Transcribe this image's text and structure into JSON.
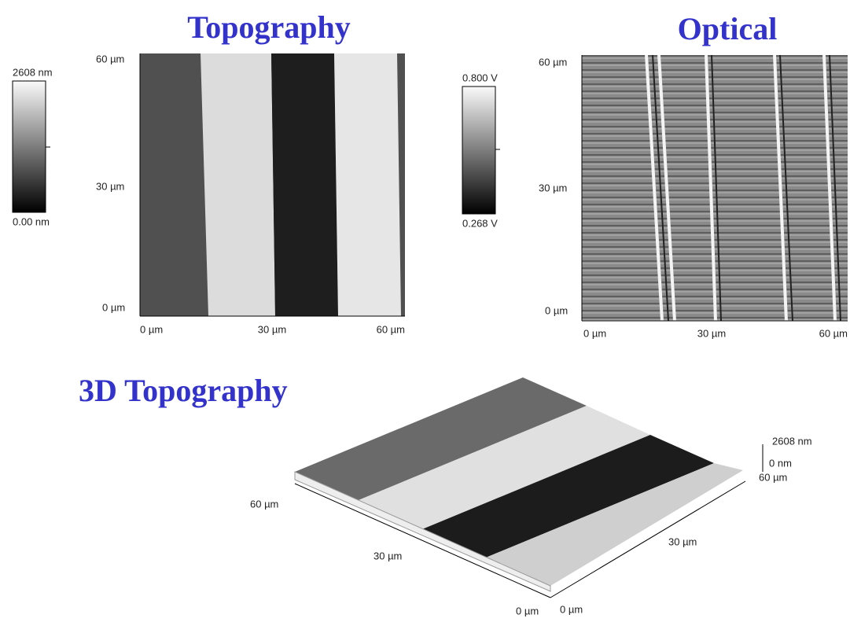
{
  "topography": {
    "title": "Topography",
    "colorbar": {
      "max": "2608 nm",
      "min": "0.00 nm"
    },
    "y_labels": [
      "60 µm",
      "30 µm",
      "0 µm"
    ],
    "x_labels": [
      "0 µm",
      "30 µm",
      "60 µm"
    ]
  },
  "optical": {
    "title": "Optical",
    "colorbar": {
      "max": "0.800 V",
      "min": "0.268 V"
    },
    "y_labels": [
      "60 µm",
      "30 µm",
      "0 µm"
    ],
    "x_labels": [
      "0 µm",
      "30 µm",
      "60 µm"
    ]
  },
  "topography_3d": {
    "title": "3D Topography",
    "z_labels": [
      "2608 nm",
      "0 nm"
    ],
    "left_axis": [
      "60 µm",
      "30 µm",
      "0 µm"
    ],
    "right_axis": [
      "60 µm",
      "30 µm",
      "0 µm"
    ]
  }
}
